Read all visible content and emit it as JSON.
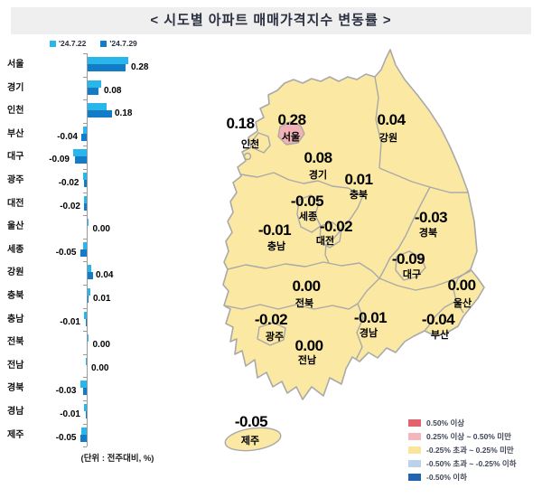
{
  "title": "< 시도별 아파트 매매가격지수 변동률 >",
  "unit_label": "(단위 : 전주대비, %)",
  "colors": {
    "bar_series_1": "#29b6ea",
    "bar_series_2": "#137cc8",
    "map_fill_default": "#fae8a3",
    "map_fill_seoul": "#f1b2b7",
    "map_border": "#a9a9a9",
    "title_band": "#efefef"
  },
  "chart_data": [
    {
      "type": "bar",
      "orientation": "horizontal",
      "title": "< 시도별 아파트 매매가격지수 변동률 >",
      "unit": "전주대비, %",
      "xlim": [
        -0.15,
        0.35
      ],
      "categories": [
        "서울",
        "경기",
        "인천",
        "부산",
        "대구",
        "광주",
        "대전",
        "울산",
        "세종",
        "강원",
        "충북",
        "충남",
        "전북",
        "전남",
        "경북",
        "경남",
        "제주"
      ],
      "series": [
        {
          "name": "'24.7.22",
          "color": "#29b6ea",
          "values": [
            0.3,
            0.1,
            0.14,
            -0.03,
            -0.1,
            -0.03,
            -0.02,
            0.01,
            -0.03,
            0.03,
            0.02,
            -0.02,
            0.01,
            -0.01,
            -0.05,
            -0.02,
            -0.04
          ]
        },
        {
          "name": "'24.7.29",
          "color": "#137cc8",
          "values": [
            0.28,
            0.08,
            0.18,
            -0.04,
            -0.09,
            -0.02,
            -0.02,
            0.0,
            -0.05,
            0.04,
            0.01,
            -0.01,
            0.0,
            0.0,
            -0.03,
            -0.01,
            -0.05
          ]
        }
      ],
      "value_labels_series": "'24.7.29"
    },
    {
      "type": "choropleth-map",
      "area": "대한민국 시도",
      "regions": [
        {
          "name": "인천",
          "value": 0.18,
          "fill": "yellow"
        },
        {
          "name": "서울",
          "value": 0.28,
          "fill": "pink"
        },
        {
          "name": "경기",
          "value": 0.08,
          "fill": "yellow"
        },
        {
          "name": "강원",
          "value": 0.04,
          "fill": "yellow"
        },
        {
          "name": "충북",
          "value": 0.01,
          "fill": "yellow"
        },
        {
          "name": "세종",
          "value": -0.05,
          "fill": "yellow"
        },
        {
          "name": "대전",
          "value": -0.02,
          "fill": "yellow"
        },
        {
          "name": "충남",
          "value": -0.01,
          "fill": "yellow"
        },
        {
          "name": "경북",
          "value": -0.03,
          "fill": "yellow"
        },
        {
          "name": "대구",
          "value": -0.09,
          "fill": "yellow"
        },
        {
          "name": "전북",
          "value": 0.0,
          "fill": "yellow"
        },
        {
          "name": "울산",
          "value": 0.0,
          "fill": "yellow"
        },
        {
          "name": "광주",
          "value": -0.02,
          "fill": "yellow"
        },
        {
          "name": "경남",
          "value": -0.01,
          "fill": "yellow"
        },
        {
          "name": "부산",
          "value": -0.04,
          "fill": "yellow"
        },
        {
          "name": "전남",
          "value": 0.0,
          "fill": "yellow"
        },
        {
          "name": "제주",
          "value": -0.05,
          "fill": "yellow"
        }
      ],
      "legend": [
        {
          "label": "0.50% 이상",
          "color": "#e2636c"
        },
        {
          "label": "0.25% 이상 ~ 0.50% 미만",
          "color": "#f5b6bb"
        },
        {
          "label": "-0.25% 초과 ~ 0.25% 미만",
          "color": "#fbe49b"
        },
        {
          "label": "-0.50% 초과 ~ -0.25% 이하",
          "color": "#bcd2ea"
        },
        {
          "label": "-0.50% 이하",
          "color": "#2264ae"
        }
      ]
    }
  ]
}
